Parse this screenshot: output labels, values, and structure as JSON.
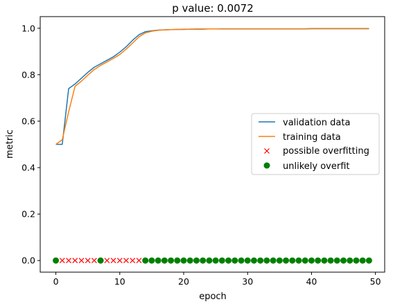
{
  "chart_data": {
    "type": "line",
    "title": "p value: 0.0072",
    "xlabel": "epoch",
    "ylabel": "metric",
    "xlim": [
      -2.45,
      51.45
    ],
    "ylim": [
      -0.05,
      1.05
    ],
    "xticks": [
      0,
      10,
      20,
      30,
      40,
      50
    ],
    "yticks": [
      0.0,
      0.2,
      0.4,
      0.6,
      0.8,
      1.0
    ],
    "ytick_labels": [
      "0.0",
      "0.2",
      "0.4",
      "0.6",
      "0.8",
      "1.0"
    ],
    "grid": false,
    "legend_position": "center-right",
    "colors": {
      "validation": "#1f77b4",
      "training": "#ff7f0e",
      "overfit": "#ff0000",
      "unlikely": "#008000"
    },
    "series": [
      {
        "name": "validation data",
        "values": [
          0.5,
          0.5,
          0.74,
          0.76,
          0.785,
          0.81,
          0.832,
          0.847,
          0.862,
          0.877,
          0.897,
          0.92,
          0.948,
          0.972,
          0.985,
          0.989,
          0.992,
          0.993,
          0.994,
          0.995,
          0.995,
          0.996,
          0.996,
          0.996,
          0.997,
          0.997,
          0.997,
          0.997,
          0.997,
          0.997,
          0.997,
          0.997,
          0.997,
          0.997,
          0.997,
          0.997,
          0.997,
          0.997,
          0.997,
          0.997,
          0.998,
          0.998,
          0.998,
          0.998,
          0.998,
          0.998,
          0.998,
          0.998,
          0.998,
          0.998
        ]
      },
      {
        "name": "training data",
        "values": [
          0.5,
          0.52,
          0.64,
          0.75,
          0.772,
          0.798,
          0.822,
          0.84,
          0.855,
          0.87,
          0.887,
          0.91,
          0.936,
          0.963,
          0.98,
          0.987,
          0.991,
          0.993,
          0.994,
          0.995,
          0.996,
          0.996,
          0.997,
          0.997,
          0.997,
          0.997,
          0.998,
          0.998,
          0.998,
          0.998,
          0.998,
          0.998,
          0.998,
          0.998,
          0.998,
          0.998,
          0.998,
          0.998,
          0.998,
          0.998,
          0.999,
          0.999,
          0.999,
          0.999,
          0.999,
          0.999,
          0.999,
          0.999,
          0.999,
          0.999
        ]
      },
      {
        "name": "possible overfitting",
        "x": [
          1,
          2,
          3,
          4,
          5,
          6,
          8,
          9,
          10,
          11,
          12,
          13
        ],
        "y": [
          0,
          0,
          0,
          0,
          0,
          0,
          0,
          0,
          0,
          0,
          0,
          0
        ]
      },
      {
        "name": "unlikely overfit",
        "x": [
          0,
          7,
          14,
          15,
          16,
          17,
          18,
          19,
          20,
          21,
          22,
          23,
          24,
          25,
          26,
          27,
          28,
          29,
          30,
          31,
          32,
          33,
          34,
          35,
          36,
          37,
          38,
          39,
          40,
          41,
          42,
          43,
          44,
          45,
          46,
          47,
          48,
          49
        ],
        "y": [
          0,
          0,
          0,
          0,
          0,
          0,
          0,
          0,
          0,
          0,
          0,
          0,
          0,
          0,
          0,
          0,
          0,
          0,
          0,
          0,
          0,
          0,
          0,
          0,
          0,
          0,
          0,
          0,
          0,
          0,
          0,
          0,
          0,
          0,
          0,
          0,
          0,
          0
        ]
      }
    ]
  }
}
